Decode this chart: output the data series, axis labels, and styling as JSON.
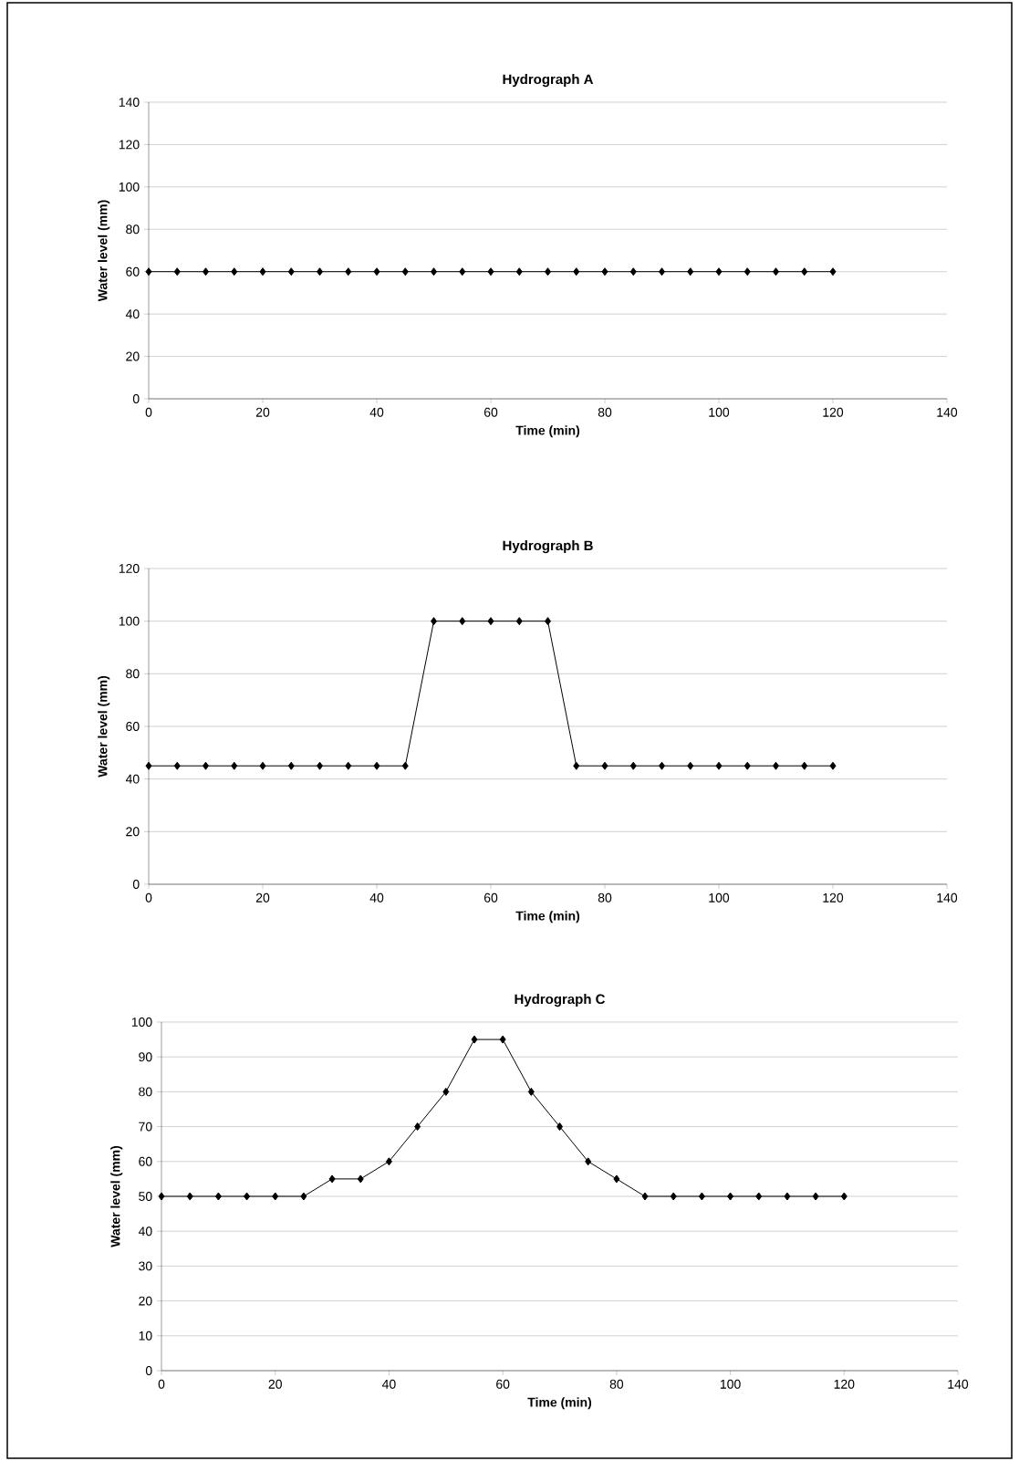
{
  "chart_data": [
    {
      "type": "line",
      "title": "Hydrograph A",
      "xlabel": "Time (min)",
      "ylabel": "Water level (mm)",
      "x": [
        0,
        5,
        10,
        15,
        20,
        25,
        30,
        35,
        40,
        45,
        50,
        55,
        60,
        65,
        70,
        75,
        80,
        85,
        90,
        95,
        100,
        105,
        110,
        115,
        120
      ],
      "values": [
        60,
        60,
        60,
        60,
        60,
        60,
        60,
        60,
        60,
        60,
        60,
        60,
        60,
        60,
        60,
        60,
        60,
        60,
        60,
        60,
        60,
        60,
        60,
        60,
        60
      ],
      "color": "#000000",
      "marker": "diamond",
      "line_style": "solid",
      "xlim": [
        0,
        140
      ],
      "xticks": [
        0,
        20,
        40,
        60,
        80,
        100,
        120,
        140
      ],
      "ylim": [
        0,
        140
      ],
      "yticks": [
        0,
        20,
        40,
        60,
        80,
        100,
        120,
        140
      ],
      "grid": "y"
    },
    {
      "type": "line",
      "title": "Hydrograph B",
      "xlabel": "Time (min)",
      "ylabel": "Water level (mm)",
      "x": [
        0,
        5,
        10,
        15,
        20,
        25,
        30,
        35,
        40,
        45,
        50,
        55,
        60,
        65,
        70,
        75,
        80,
        85,
        90,
        95,
        100,
        105,
        110,
        115,
        120
      ],
      "values": [
        45,
        45,
        45,
        45,
        45,
        45,
        45,
        45,
        45,
        45,
        100,
        100,
        100,
        100,
        100,
        45,
        45,
        45,
        45,
        45,
        45,
        45,
        45,
        45,
        45
      ],
      "color": "#000000",
      "marker": "diamond",
      "line_style": "solid",
      "xlim": [
        0,
        140
      ],
      "xticks": [
        0,
        20,
        40,
        60,
        80,
        100,
        120,
        140
      ],
      "ylim": [
        0,
        120
      ],
      "yticks": [
        0,
        20,
        40,
        60,
        80,
        100,
        120
      ],
      "grid": "y"
    },
    {
      "type": "line",
      "title": "Hydrograph C",
      "xlabel": "Time (min)",
      "ylabel": "Water level (mm)",
      "x": [
        0,
        5,
        10,
        15,
        20,
        25,
        30,
        35,
        40,
        45,
        50,
        55,
        60,
        65,
        70,
        75,
        80,
        85,
        90,
        95,
        100,
        105,
        110,
        115,
        120
      ],
      "values": [
        50,
        50,
        50,
        50,
        50,
        50,
        55,
        55,
        60,
        70,
        80,
        95,
        95,
        80,
        70,
        60,
        55,
        50,
        50,
        50,
        50,
        50,
        50,
        50,
        50
      ],
      "color": "#000000",
      "marker": "diamond",
      "line_style": "solid",
      "xlim": [
        0,
        140
      ],
      "xticks": [
        0,
        20,
        40,
        60,
        80,
        100,
        120,
        140
      ],
      "ylim": [
        0,
        100
      ],
      "yticks": [
        0,
        10,
        20,
        30,
        40,
        50,
        60,
        70,
        80,
        90,
        100
      ],
      "grid": "y"
    }
  ]
}
